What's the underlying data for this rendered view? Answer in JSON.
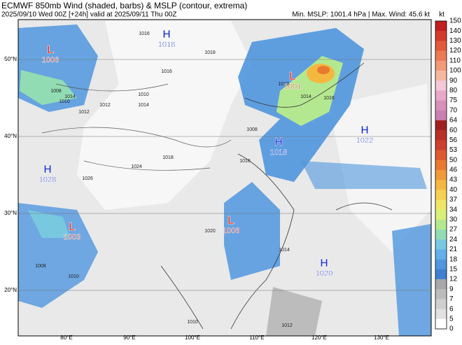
{
  "header": {
    "title": "ECMWF 850mb Wind (shaded, barbs) & MSLP (contour, extrema)",
    "subtitle": "2025/09/10 Wed 00Z [+24h] valid at 2025/09/11 Thu 00Z",
    "stats": "Min. MSLP: 1001.4 hPa | Max. Wind: 45.6 kt"
  },
  "colorbar": {
    "unit": "kt",
    "ticks": [
      "150",
      "140",
      "130",
      "120",
      "110",
      "100",
      "90",
      "80",
      "75",
      "70",
      "64",
      "60",
      "56",
      "53",
      "50",
      "46",
      "43",
      "40",
      "37",
      "34",
      "30",
      "27",
      "24",
      "21",
      "18",
      "15",
      "12",
      "9",
      "7",
      "6",
      "5",
      "0"
    ],
    "colors": [
      "#c02020",
      "#d43a2a",
      "#e25a3a",
      "#ec7a54",
      "#f29a78",
      "#f6b8a0",
      "#f4c8d8",
      "#e8a8c8",
      "#d890b8",
      "#c880b0",
      "#a02020",
      "#b83028",
      "#cc4030",
      "#dc5a30",
      "#e87a30",
      "#f09a38",
      "#f4b840",
      "#f6d050",
      "#f0e468",
      "#d8ef78",
      "#b4e890",
      "#92dcb4",
      "#78c8e0",
      "#62b0ea",
      "#4f96de",
      "#3f7fd2",
      "#a8a8a8",
      "#bcbcbc",
      "#cfcfcf",
      "#e2e2e2",
      "#ffffff"
    ]
  },
  "centers": [
    {
      "type": "L",
      "value": "1006"
    },
    {
      "type": "H",
      "value": "1018"
    },
    {
      "type": "L",
      "value": "1001"
    },
    {
      "type": "H",
      "value": "1018"
    },
    {
      "type": "H",
      "value": "1022"
    },
    {
      "type": "H",
      "value": "1028"
    },
    {
      "type": "L",
      "value": "1003"
    },
    {
      "type": "L",
      "value": "1006"
    },
    {
      "type": "H",
      "value": "1020"
    }
  ],
  "latitudes": [
    "50°N",
    "40°N",
    "30°N",
    "20°N"
  ],
  "longitudes": [
    "80°E",
    "90°E",
    "100°E",
    "110°E",
    "120°E",
    "130°E"
  ],
  "contour_labels": [
    "1014",
    "1010",
    "1008",
    "1014",
    "1012",
    "1016",
    "1018",
    "1016",
    "1010",
    "1012",
    "1018",
    "1024",
    "1026",
    "1016",
    "1020",
    "1008",
    "1010",
    "1010",
    "1012",
    "1016",
    "1014",
    "1010",
    "1008",
    "1014"
  ]
}
